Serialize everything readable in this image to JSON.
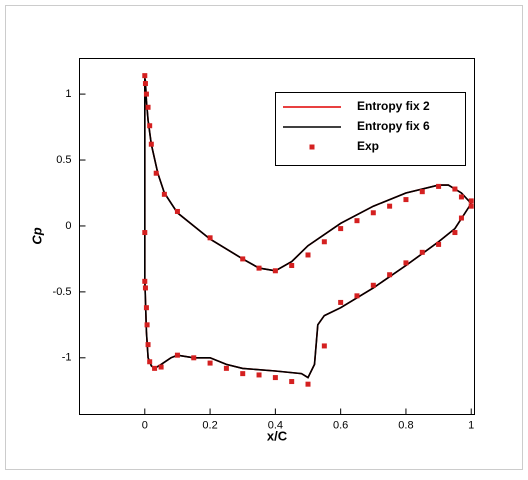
{
  "chart_data": {
    "type": "line",
    "xlabel": "x/C",
    "ylabel": "Cp",
    "xlim": [
      -0.2,
      1.01
    ],
    "ylim": [
      -1.43,
      1.27
    ],
    "xticks": [
      0,
      0.2,
      0.4,
      0.6,
      0.8,
      1
    ],
    "yticks": [
      -1,
      -0.5,
      0,
      0.5,
      1
    ],
    "legend": "upper-right",
    "series": [
      {
        "name": "Entropy fix 2",
        "color": "#e00000",
        "mode": "line",
        "x": [
          1,
          0.97,
          0.93,
          0.9,
          0.8,
          0.7,
          0.6,
          0.5,
          0.45,
          0.4,
          0.35,
          0.3,
          0.2,
          0.1,
          0.06,
          0.04,
          0.02,
          0.01,
          0.005,
          0.002,
          0,
          0,
          0.005,
          0.01,
          0.02,
          0.03,
          0.05,
          0.08,
          0.1,
          0.15,
          0.2,
          0.25,
          0.3,
          0.4,
          0.48,
          0.5,
          0.52,
          0.53,
          0.55,
          0.6,
          0.7,
          0.8,
          0.9,
          0.95,
          1
        ],
        "y": [
          0.17,
          0.25,
          0.31,
          0.31,
          0.25,
          0.15,
          0.02,
          -0.15,
          -0.27,
          -0.34,
          -0.32,
          -0.25,
          -0.1,
          0.1,
          0.25,
          0.4,
          0.62,
          0.8,
          0.95,
          1.1,
          1.12,
          -0.4,
          -0.8,
          -1.0,
          -1.06,
          -1.08,
          -1.05,
          -1.0,
          -0.98,
          -1.0,
          -1.0,
          -1.05,
          -1.08,
          -1.1,
          -1.12,
          -1.15,
          -1.05,
          -0.75,
          -0.68,
          -0.62,
          -0.47,
          -0.3,
          -0.12,
          -0.02,
          0.17
        ]
      },
      {
        "name": "Entropy fix 6",
        "color": "#000000",
        "mode": "line",
        "x": [
          1,
          0.97,
          0.93,
          0.9,
          0.8,
          0.7,
          0.6,
          0.5,
          0.45,
          0.4,
          0.35,
          0.3,
          0.2,
          0.1,
          0.06,
          0.04,
          0.02,
          0.01,
          0.005,
          0.002,
          0,
          0,
          0.005,
          0.01,
          0.02,
          0.03,
          0.05,
          0.08,
          0.1,
          0.15,
          0.2,
          0.25,
          0.3,
          0.4,
          0.48,
          0.5,
          0.52,
          0.53,
          0.55,
          0.6,
          0.7,
          0.8,
          0.9,
          0.95,
          1
        ],
        "y": [
          0.17,
          0.25,
          0.31,
          0.31,
          0.25,
          0.15,
          0.02,
          -0.15,
          -0.27,
          -0.34,
          -0.32,
          -0.25,
          -0.1,
          0.1,
          0.25,
          0.4,
          0.62,
          0.8,
          0.95,
          1.1,
          1.12,
          -0.4,
          -0.8,
          -1.0,
          -1.06,
          -1.08,
          -1.05,
          -1.0,
          -0.98,
          -1.0,
          -1.0,
          -1.05,
          -1.08,
          -1.1,
          -1.12,
          -1.15,
          -1.05,
          -0.75,
          -0.68,
          -0.62,
          -0.47,
          -0.3,
          -0.12,
          -0.02,
          0.17
        ]
      },
      {
        "name": "Exp",
        "color": "#d42020",
        "mode": "marker",
        "x": [
          0,
          0.002,
          0.005,
          0.01,
          0.015,
          0.02,
          0.035,
          0.06,
          0.1,
          0.2,
          0.3,
          0.35,
          0.4,
          0.45,
          0.5,
          0.55,
          0.6,
          0.65,
          0.7,
          0.75,
          0.8,
          0.85,
          0.9,
          0.95,
          0.97,
          1.0,
          0,
          0,
          0.002,
          0.005,
          0.007,
          0.01,
          0.015,
          0.03,
          0.05,
          0.1,
          0.15,
          0.2,
          0.25,
          0.3,
          0.35,
          0.4,
          0.45,
          0.5,
          0.55,
          0.6,
          0.65,
          0.7,
          0.75,
          0.8,
          0.85,
          0.9,
          0.95,
          0.97,
          1.0
        ],
        "y": [
          1.14,
          1.08,
          1.0,
          0.9,
          0.76,
          0.62,
          0.4,
          0.24,
          0.11,
          -0.09,
          -0.25,
          -0.32,
          -0.34,
          -0.3,
          -0.22,
          -0.12,
          -0.02,
          0.04,
          0.1,
          0.15,
          0.2,
          0.26,
          0.3,
          0.28,
          0.22,
          0.19,
          -0.05,
          -0.42,
          -0.47,
          -0.62,
          -0.75,
          -0.9,
          -1.03,
          -1.08,
          -1.07,
          -0.98,
          -1.0,
          -1.04,
          -1.08,
          -1.12,
          -1.13,
          -1.15,
          -1.18,
          -1.2,
          -0.91,
          -0.58,
          -0.53,
          -0.45,
          -0.37,
          -0.28,
          -0.2,
          -0.14,
          -0.05,
          0.06,
          0.15
        ]
      }
    ]
  }
}
